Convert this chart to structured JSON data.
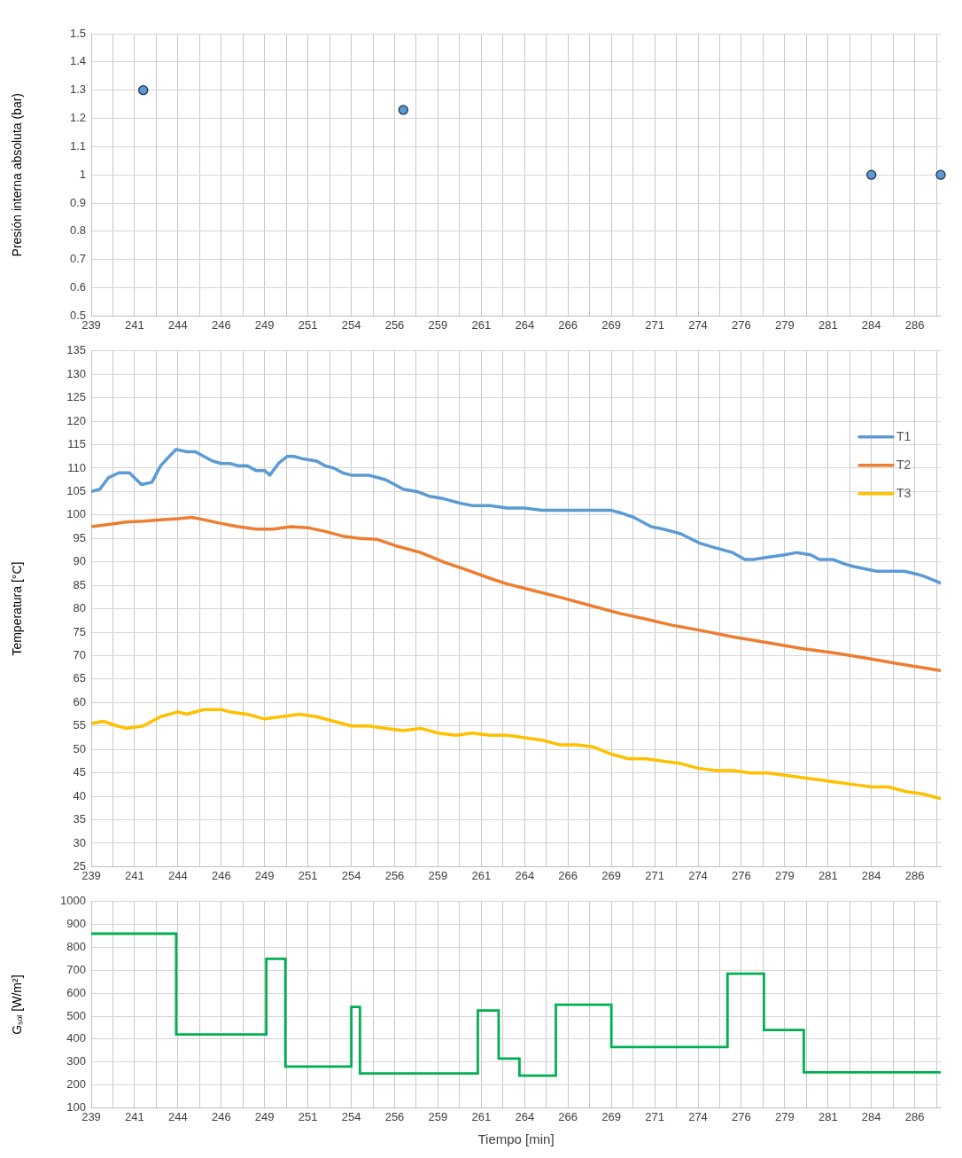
{
  "chart_data": [
    {
      "type": "scatter",
      "ylabel": "Presión interna absoluta (bar)",
      "x": [
        242,
        257,
        284,
        288
      ],
      "values": [
        1.3,
        1.23,
        1,
        1
      ],
      "color": "#5b9bd5",
      "marker": "circle",
      "grid": true,
      "xlim": [
        239,
        288
      ],
      "xticks": [
        239,
        {
          "value": 240.25,
          "label": null
        },
        {
          "value": 241.5,
          "label": "241"
        },
        {
          "value": 242.75,
          "label": null
        },
        244,
        {
          "value": 245.25,
          "label": null
        },
        {
          "value": 246.5,
          "label": "246"
        },
        {
          "value": 247.75,
          "label": null
        },
        249,
        {
          "value": 250.25,
          "label": null
        },
        {
          "value": 251.5,
          "label": "251"
        },
        {
          "value": 252.75,
          "label": null
        },
        254,
        {
          "value": 255.25,
          "label": null
        },
        {
          "value": 256.5,
          "label": "256"
        },
        {
          "value": 257.75,
          "label": null
        },
        259,
        {
          "value": 260.25,
          "label": null
        },
        {
          "value": 261.5,
          "label": "261"
        },
        {
          "value": 262.75,
          "label": null
        },
        264,
        {
          "value": 265.25,
          "label": null
        },
        {
          "value": 266.5,
          "label": "266"
        },
        {
          "value": 267.75,
          "label": null
        },
        269,
        {
          "value": 270.25,
          "label": null
        },
        {
          "value": 271.5,
          "label": "271"
        },
        {
          "value": 272.75,
          "label": null
        },
        274,
        {
          "value": 275.25,
          "label": null
        },
        {
          "value": 276.5,
          "label": "276"
        },
        {
          "value": 277.75,
          "label": null
        },
        279,
        {
          "value": 280.25,
          "label": null
        },
        {
          "value": 281.5,
          "label": "281"
        },
        {
          "value": 282.75,
          "label": null
        },
        284,
        {
          "value": 285.25,
          "label": null
        },
        {
          "value": 286.5,
          "label": "286"
        },
        {
          "value": 287.75,
          "label": null
        }
      ],
      "ylim": [
        0.5,
        1.5
      ],
      "yticks": [
        0.5,
        0.6,
        0.7,
        0.8,
        0.9,
        1,
        1.1,
        1.2,
        1.3,
        1.4,
        1.5
      ]
    },
    {
      "type": "line",
      "ylabel": "Temperatura [°C]",
      "legend": "top right",
      "grid": true,
      "series": [
        {
          "name": "T1",
          "color": "#5b9bd5",
          "x": [
            239,
            239.5,
            240,
            240.6,
            241.2,
            241.9,
            242.5,
            243,
            243.5,
            243.9,
            244.5,
            245,
            245.5,
            246,
            246.5,
            247,
            247.5,
            248,
            248.5,
            249,
            249.3,
            249.8,
            250.3,
            250.7,
            251.2,
            252,
            252.5,
            253,
            253.5,
            254,
            254.5,
            255,
            255.5,
            256,
            256.5,
            257,
            257.8,
            258.5,
            259.3,
            260.3,
            261,
            262,
            263,
            264,
            265,
            265.4,
            266,
            267,
            268,
            269,
            269.5,
            270.3,
            271.3,
            272,
            273,
            274.1,
            275,
            276,
            276.7,
            277.2,
            278,
            279,
            279.7,
            280.5,
            281,
            281.8,
            282.5,
            283,
            284.3,
            285,
            285.9,
            286.5,
            287,
            288
          ],
          "values": [
            105,
            105.5,
            108,
            109,
            109,
            106.5,
            107,
            110.5,
            112.5,
            114,
            113.5,
            113.5,
            112.5,
            111.5,
            111,
            111,
            110.5,
            110.5,
            109.5,
            109.5,
            108.5,
            111,
            112.5,
            112.5,
            112,
            111.5,
            110.5,
            110,
            109,
            108.5,
            108.5,
            108.5,
            108,
            107.5,
            106.5,
            105.5,
            105,
            104,
            103.5,
            102.5,
            102,
            102,
            101.5,
            101.5,
            101,
            101,
            101,
            101,
            101,
            101,
            100.5,
            99.5,
            97.5,
            97,
            96,
            94,
            93,
            92,
            90.5,
            90.5,
            91,
            91.5,
            92,
            91.5,
            90.5,
            90.5,
            89.5,
            89,
            88,
            88,
            88,
            87.5,
            87,
            85.5
          ]
        },
        {
          "name": "T2",
          "color": "#ed7d31",
          "x": [
            239,
            240,
            241,
            242,
            243,
            244,
            244.8,
            245.5,
            246.5,
            247.5,
            248.5,
            249.5,
            250.5,
            251.5,
            252.5,
            253.5,
            254.5,
            255.5,
            256.5,
            258,
            259.3,
            260.5,
            262,
            263,
            264.4,
            266,
            268,
            269.5,
            271,
            272.5,
            274,
            276,
            278,
            280,
            282,
            284,
            286,
            288
          ],
          "values": [
            97.5,
            98,
            98.5,
            98.7,
            99,
            99.2,
            99.5,
            99,
            98.2,
            97.5,
            97,
            97,
            97.5,
            97.3,
            96.5,
            95.5,
            95,
            94.8,
            93.5,
            92,
            90,
            88.5,
            86.5,
            85.3,
            84,
            82.5,
            80.5,
            79,
            77.8,
            76.5,
            75.5,
            74,
            72.8,
            71.5,
            70.5,
            69.3,
            68,
            66.8
          ]
        },
        {
          "name": "T3",
          "color": "#ffc000",
          "x": [
            239,
            239.7,
            240.5,
            241,
            242,
            243,
            244,
            244.5,
            245.5,
            246.5,
            247,
            248,
            249,
            250,
            251,
            252,
            253,
            254,
            255,
            256,
            257,
            258,
            259,
            260,
            261,
            262,
            263,
            264,
            265,
            266,
            267,
            268,
            269,
            270,
            271,
            272,
            273,
            274,
            275,
            276,
            277,
            278,
            279,
            280,
            281,
            282,
            283,
            284,
            285,
            286,
            287,
            288
          ],
          "values": [
            55.5,
            56,
            55,
            54.5,
            55,
            57,
            58,
            57.5,
            58.5,
            58.5,
            58,
            57.5,
            56.5,
            57,
            57.5,
            57,
            56,
            55,
            55,
            54.5,
            54,
            54.5,
            53.5,
            53,
            53.5,
            53,
            53,
            52.5,
            52,
            51,
            51,
            50.5,
            49,
            48,
            48,
            47.5,
            47,
            46,
            45.5,
            45.5,
            45,
            45,
            44.5,
            44,
            43.5,
            43,
            42.5,
            42,
            42,
            41,
            40.5,
            39.5
          ]
        }
      ],
      "xlim": [
        239,
        288
      ],
      "xticks": [
        239,
        {
          "value": 240.25,
          "label": null
        },
        {
          "value": 241.5,
          "label": "241"
        },
        {
          "value": 242.75,
          "label": null
        },
        244,
        {
          "value": 245.25,
          "label": null
        },
        {
          "value": 246.5,
          "label": "246"
        },
        {
          "value": 247.75,
          "label": null
        },
        249,
        {
          "value": 250.25,
          "label": null
        },
        {
          "value": 251.5,
          "label": "251"
        },
        {
          "value": 252.75,
          "label": null
        },
        254,
        {
          "value": 255.25,
          "label": null
        },
        {
          "value": 256.5,
          "label": "256"
        },
        {
          "value": 257.75,
          "label": null
        },
        259,
        {
          "value": 260.25,
          "label": null
        },
        {
          "value": 261.5,
          "label": "261"
        },
        {
          "value": 262.75,
          "label": null
        },
        264,
        {
          "value": 265.25,
          "label": null
        },
        {
          "value": 266.5,
          "label": "266"
        },
        {
          "value": 267.75,
          "label": null
        },
        269,
        {
          "value": 270.25,
          "label": null
        },
        {
          "value": 271.5,
          "label": "271"
        },
        {
          "value": 272.75,
          "label": null
        },
        274,
        {
          "value": 275.25,
          "label": null
        },
        {
          "value": 276.5,
          "label": "276"
        },
        {
          "value": 277.75,
          "label": null
        },
        279,
        {
          "value": 280.25,
          "label": null
        },
        {
          "value": 281.5,
          "label": "281"
        },
        {
          "value": 282.75,
          "label": null
        },
        284,
        {
          "value": 285.25,
          "label": null
        },
        {
          "value": 286.5,
          "label": "286"
        },
        {
          "value": 287.75,
          "label": null
        }
      ],
      "ylim": [
        25,
        135
      ],
      "yticks": [
        25,
        30,
        35,
        40,
        45,
        50,
        55,
        60,
        65,
        70,
        75,
        80,
        85,
        90,
        95,
        100,
        105,
        110,
        115,
        120,
        125,
        130,
        135
      ]
    },
    {
      "type": "step",
      "xlabel": "Tiempo [min]",
      "ylabel": "Gₛₒₗ [W/m²]",
      "color": "#00b050",
      "grid": true,
      "x": [
        239,
        243.9,
        249.1,
        250.2,
        254,
        254.5,
        261.3,
        262.5,
        263.7,
        265.8,
        269,
        275.7,
        277.8,
        280.1,
        288
      ],
      "values": [
        860,
        420,
        750,
        280,
        540,
        250,
        525,
        315,
        240,
        550,
        365,
        685,
        440,
        255,
        255
      ],
      "xlim": [
        239,
        288
      ],
      "xticks": [
        239,
        {
          "value": 240.25,
          "label": null
        },
        {
          "value": 241.5,
          "label": "241"
        },
        {
          "value": 242.75,
          "label": null
        },
        244,
        {
          "value": 245.25,
          "label": null
        },
        {
          "value": 246.5,
          "label": "246"
        },
        {
          "value": 247.75,
          "label": null
        },
        249,
        {
          "value": 250.25,
          "label": null
        },
        {
          "value": 251.5,
          "label": "251"
        },
        {
          "value": 252.75,
          "label": null
        },
        254,
        {
          "value": 255.25,
          "label": null
        },
        {
          "value": 256.5,
          "label": "256"
        },
        {
          "value": 257.75,
          "label": null
        },
        259,
        {
          "value": 260.25,
          "label": null
        },
        {
          "value": 261.5,
          "label": "261"
        },
        {
          "value": 262.75,
          "label": null
        },
        264,
        {
          "value": 265.25,
          "label": null
        },
        {
          "value": 266.5,
          "label": "266"
        },
        {
          "value": 267.75,
          "label": null
        },
        269,
        {
          "value": 270.25,
          "label": null
        },
        {
          "value": 271.5,
          "label": "271"
        },
        {
          "value": 272.75,
          "label": null
        },
        274,
        {
          "value": 275.25,
          "label": null
        },
        {
          "value": 276.5,
          "label": "276"
        },
        {
          "value": 277.75,
          "label": null
        },
        279,
        {
          "value": 280.25,
          "label": null
        },
        {
          "value": 281.5,
          "label": "281"
        },
        {
          "value": 282.75,
          "label": null
        },
        284,
        {
          "value": 285.25,
          "label": null
        },
        {
          "value": 286.5,
          "label": "286"
        },
        {
          "value": 287.75,
          "label": null
        }
      ],
      "ylim": [
        100,
        1000
      ],
      "yticks": [
        100,
        200,
        300,
        400,
        500,
        600,
        700,
        800,
        900,
        1000
      ]
    }
  ]
}
